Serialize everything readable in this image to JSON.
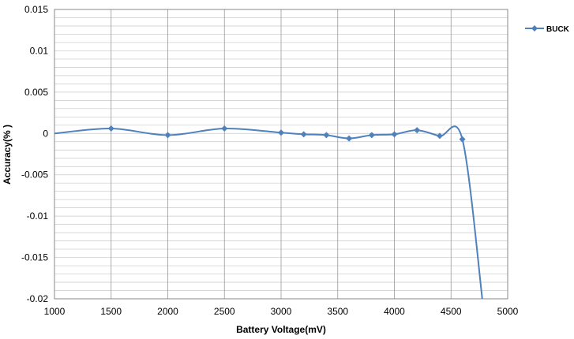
{
  "chart_data": {
    "type": "line",
    "xlabel": "Battery Voltage(mV)",
    "ylabel": "Accuracy(% )",
    "xlim": [
      1000,
      5000
    ],
    "ylim": [
      -0.02,
      0.015
    ],
    "x_ticks": [
      "1000",
      "1500",
      "2000",
      "2500",
      "3000",
      "3500",
      "4000",
      "4500",
      "5000"
    ],
    "y_ticks": [
      "0.015",
      "0.01",
      "0.005",
      "0",
      "-0.005",
      "-0.01",
      "-0.015",
      "-0.02"
    ],
    "grid": true,
    "legend_position": "top-right",
    "series": [
      {
        "name": "BUCK",
        "color": "#4f81bd",
        "marker": "diamond",
        "smooth": true,
        "points": [
          {
            "x": 1000,
            "y": 0.0,
            "marker": false
          },
          {
            "x": 1500,
            "y": 0.0006,
            "marker": true
          },
          {
            "x": 2000,
            "y": -0.0002,
            "marker": true
          },
          {
            "x": 2500,
            "y": 0.0006,
            "marker": true
          },
          {
            "x": 3000,
            "y": 0.0001,
            "marker": true
          },
          {
            "x": 3200,
            "y": -0.0001,
            "marker": true
          },
          {
            "x": 3400,
            "y": -0.0002,
            "marker": true
          },
          {
            "x": 3600,
            "y": -0.0006,
            "marker": true
          },
          {
            "x": 3800,
            "y": -0.0002,
            "marker": true
          },
          {
            "x": 4000,
            "y": -0.0001,
            "marker": true
          },
          {
            "x": 4200,
            "y": 0.0004,
            "marker": true
          },
          {
            "x": 4400,
            "y": -0.0003,
            "marker": true
          },
          {
            "x": 4600,
            "y": -0.0007,
            "marker": true
          },
          {
            "x": 4780,
            "y": -0.0205,
            "marker": false
          }
        ]
      }
    ]
  }
}
